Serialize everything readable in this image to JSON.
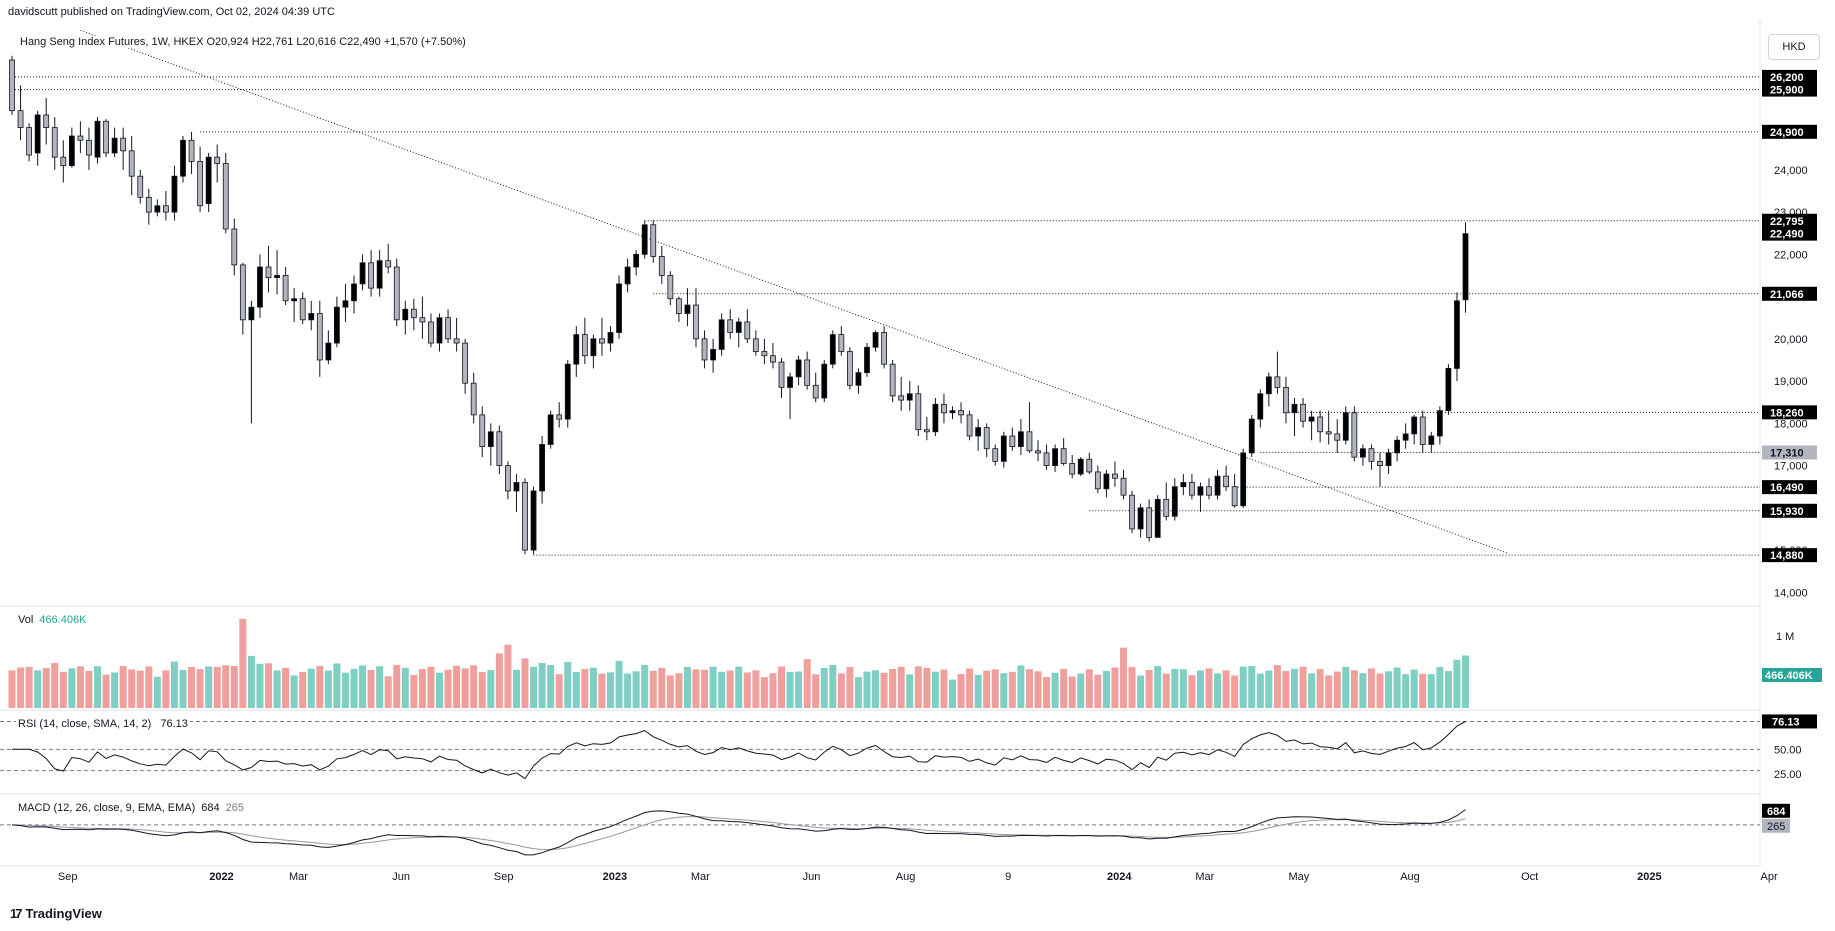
{
  "publisher_line": "davidscutt published on TradingView.com, Oct 02, 2024 04:39 UTC",
  "legend": "Hang Seng Index Futures, 1W, HKEX  O20,924  H22,761  L20,616  C22,490  +1,570 (+7.50%)",
  "currency_button": "HKD",
  "brand": "TradingView",
  "brand_logo": "17",
  "colors": {
    "up_body": "#000000",
    "down_body": "#b2b5be",
    "vol_up": "#7fcfc4",
    "vol_down": "#f0a09c",
    "vol_label": "#26a69a",
    "tag_bg": "#000000",
    "tag_grey_bg": "#b2b5be",
    "vol_tag_bg": "#26a69a"
  },
  "price_axis": {
    "labels": [
      "26,200",
      "25,900",
      "24,900",
      "24,000",
      "23,000",
      "22,795",
      "22,490",
      "22,000",
      "21,066",
      "20,000",
      "19,000",
      "18,260",
      "18,000",
      "17,310",
      "17,000",
      "16,490",
      "15,930",
      "15,000",
      "14,880",
      "14,000"
    ],
    "tags": [
      {
        "text": "26,200",
        "price": 26200,
        "style": "black"
      },
      {
        "text": "25,900",
        "price": 25900,
        "style": "black"
      },
      {
        "text": "24,900",
        "price": 24900,
        "style": "black"
      },
      {
        "text": "22,795",
        "price": 22795,
        "style": "black"
      },
      {
        "text": "22,490",
        "price": 22490,
        "style": "black"
      },
      {
        "text": "21,066",
        "price": 21066,
        "style": "black"
      },
      {
        "text": "18,260",
        "price": 18260,
        "style": "black"
      },
      {
        "text": "17,310",
        "price": 17310,
        "style": "grey"
      },
      {
        "text": "16,490",
        "price": 16490,
        "style": "black"
      },
      {
        "text": "15,930",
        "price": 15930,
        "style": "black"
      },
      {
        "text": "14,880",
        "price": 14880,
        "style": "black"
      }
    ],
    "ticks": [
      {
        "text": "24,000",
        "price": 24000
      },
      {
        "text": "23,000",
        "price": 23000
      },
      {
        "text": "22,000",
        "price": 22000
      },
      {
        "text": "20,000",
        "price": 20000
      },
      {
        "text": "19,000",
        "price": 19000
      },
      {
        "text": "18,000",
        "price": 18000
      },
      {
        "text": "17,000",
        "price": 17000
      },
      {
        "text": "15,000",
        "price": 15000
      },
      {
        "text": "14,000",
        "price": 14000
      }
    ]
  },
  "levels": [
    {
      "price": 26200,
      "from_bar": 0
    },
    {
      "price": 25900,
      "from_bar": 0
    },
    {
      "price": 24900,
      "from_bar": 22
    },
    {
      "price": 22795,
      "from_bar": 74
    },
    {
      "price": 21066,
      "from_bar": 75
    },
    {
      "price": 18260,
      "from_bar": 149
    },
    {
      "price": 17310,
      "from_bar": 146
    },
    {
      "price": 16490,
      "from_bar": 143
    },
    {
      "price": 15930,
      "from_bar": 126
    },
    {
      "price": 14880,
      "from_bar": 61
    }
  ],
  "trendline": {
    "from": {
      "bar": 8,
      "price": 27300
    },
    "to": {
      "bar": 175,
      "price": 14920
    }
  },
  "time_axis": [
    "Sep",
    "2022",
    "Mar",
    "Jun",
    "Sep",
    "2023",
    "Mar",
    "Jun",
    "Aug",
    "9",
    "2024",
    "Mar",
    "May",
    "Aug",
    "Oct",
    "2025",
    "Apr"
  ],
  "volume": {
    "label": "Vol",
    "value": "466.406K",
    "axis_label": "1 M"
  },
  "rsi": {
    "label": "RSI (14, close, SMA, 14, 2)",
    "value": "76.13",
    "axis_labels": [
      "76.13",
      "50.00",
      "25.00"
    ]
  },
  "macd": {
    "label": "MACD (12, 26, close, 9, EMA, EMA)",
    "value_macd": "684",
    "value_signal": "265",
    "axis_tags": [
      "684",
      "265"
    ]
  },
  "chart_data": {
    "type": "candlestick",
    "symbol": "Hang Seng Index Futures",
    "interval": "1W",
    "exchange": "HKEX",
    "currency": "HKD",
    "last_bar": {
      "open": 20924,
      "high": 22761,
      "low": 20616,
      "close": 22490,
      "change": 1570,
      "change_pct": 7.5
    },
    "y_range": [
      13700,
      26600
    ],
    "horizontal_levels": [
      26200,
      25900,
      24900,
      22795,
      22490,
      21066,
      18260,
      17310,
      16490,
      15930,
      14880
    ],
    "candles_ohlc": [
      [
        26600,
        26700,
        25300,
        25400
      ],
      [
        25400,
        26000,
        24700,
        25000
      ],
      [
        25000,
        25100,
        24200,
        24350
      ],
      [
        24400,
        25400,
        24100,
        25300
      ],
      [
        25300,
        25700,
        24600,
        25000
      ],
      [
        25000,
        25250,
        24000,
        24300
      ],
      [
        24300,
        24700,
        23700,
        24100
      ],
      [
        24100,
        25000,
        24050,
        24800
      ],
      [
        24800,
        25150,
        24400,
        24700
      ],
      [
        24700,
        25000,
        24000,
        24350
      ],
      [
        24300,
        25250,
        24150,
        25150
      ],
      [
        25150,
        25200,
        24300,
        24400
      ],
      [
        24400,
        25000,
        24300,
        24750
      ],
      [
        24750,
        25000,
        24000,
        24450
      ],
      [
        24450,
        24800,
        23400,
        23850
      ],
      [
        23850,
        24000,
        23200,
        23350
      ],
      [
        23350,
        23550,
        22700,
        23000
      ],
      [
        23000,
        23300,
        22900,
        23150
      ],
      [
        23150,
        23500,
        22800,
        23000
      ],
      [
        23000,
        24100,
        22800,
        23850
      ],
      [
        23850,
        24800,
        23700,
        24700
      ],
      [
        24700,
        24900,
        23900,
        24200
      ],
      [
        24200,
        24550,
        23000,
        23150
      ],
      [
        23200,
        24400,
        23000,
        24300
      ],
      [
        24300,
        24600,
        23700,
        24150
      ],
      [
        24150,
        24400,
        22500,
        22600
      ],
      [
        22600,
        22850,
        21500,
        21750
      ],
      [
        21750,
        21800,
        20100,
        20450
      ],
      [
        20450,
        20900,
        18000,
        20750
      ],
      [
        20750,
        22000,
        20500,
        21700
      ],
      [
        21700,
        22200,
        21100,
        21450
      ],
      [
        21450,
        22100,
        21050,
        21500
      ],
      [
        21500,
        21700,
        20800,
        20900
      ],
      [
        20900,
        21200,
        20400,
        20950
      ],
      [
        20950,
        21100,
        20350,
        20450
      ],
      [
        20450,
        20900,
        20200,
        20600
      ],
      [
        20600,
        20900,
        19100,
        19500
      ],
      [
        19500,
        20200,
        19400,
        19900
      ],
      [
        19900,
        21000,
        19800,
        20750
      ],
      [
        20750,
        21300,
        20400,
        20900
      ],
      [
        20900,
        21500,
        20600,
        21300
      ],
      [
        21300,
        22000,
        21150,
        21800
      ],
      [
        21800,
        22100,
        21000,
        21200
      ],
      [
        21200,
        22100,
        21000,
        21850
      ],
      [
        21850,
        22250,
        21550,
        21700
      ],
      [
        21700,
        21900,
        20300,
        20450
      ],
      [
        20450,
        20900,
        20100,
        20700
      ],
      [
        20700,
        20950,
        20200,
        20500
      ],
      [
        20500,
        21000,
        20000,
        20400
      ],
      [
        20400,
        20600,
        19800,
        19900
      ],
      [
        19900,
        20600,
        19700,
        20500
      ],
      [
        20500,
        20700,
        19900,
        20000
      ],
      [
        20000,
        20500,
        19700,
        19900
      ],
      [
        19900,
        20000,
        18700,
        18950
      ],
      [
        18950,
        19200,
        18000,
        18200
      ],
      [
        18200,
        18400,
        17200,
        17450
      ],
      [
        17450,
        18000,
        17000,
        17800
      ],
      [
        17800,
        17950,
        16800,
        17000
      ],
      [
        17000,
        17100,
        16200,
        16400
      ],
      [
        16400,
        16800,
        15900,
        16600
      ],
      [
        16600,
        16700,
        14900,
        15000
      ],
      [
        15000,
        16500,
        14900,
        16400
      ],
      [
        16400,
        17700,
        16100,
        17500
      ],
      [
        17500,
        18300,
        17400,
        18200
      ],
      [
        18200,
        18500,
        17900,
        18100
      ],
      [
        18100,
        19500,
        17900,
        19400
      ],
      [
        19400,
        20300,
        19100,
        20100
      ],
      [
        20100,
        20500,
        19400,
        19600
      ],
      [
        19600,
        20100,
        19300,
        20000
      ],
      [
        20000,
        20500,
        19600,
        19900
      ],
      [
        19900,
        20300,
        19700,
        20150
      ],
      [
        20150,
        21500,
        20000,
        21300
      ],
      [
        21300,
        21900,
        21100,
        21700
      ],
      [
        21700,
        22100,
        21500,
        22000
      ],
      [
        22000,
        22800,
        21900,
        22700
      ],
      [
        22700,
        22800,
        21800,
        21950
      ],
      [
        21950,
        22200,
        21300,
        21500
      ],
      [
        21500,
        21600,
        20800,
        20950
      ],
      [
        20950,
        21000,
        20400,
        20600
      ],
      [
        20600,
        21200,
        20300,
        20800
      ],
      [
        20800,
        21200,
        19800,
        20000
      ],
      [
        20000,
        20200,
        19300,
        19500
      ],
      [
        19500,
        20000,
        19200,
        19750
      ],
      [
        19750,
        20600,
        19600,
        20450
      ],
      [
        20450,
        20700,
        20000,
        20150
      ],
      [
        20150,
        20500,
        19800,
        20400
      ],
      [
        20400,
        20700,
        19900,
        20000
      ],
      [
        20000,
        20200,
        19600,
        19700
      ],
      [
        19700,
        20000,
        19400,
        19600
      ],
      [
        19600,
        19900,
        19300,
        19450
      ],
      [
        19450,
        19550,
        18600,
        18850
      ],
      [
        18850,
        19200,
        18100,
        19100
      ],
      [
        19100,
        19600,
        18900,
        19500
      ],
      [
        19500,
        19700,
        18800,
        18900
      ],
      [
        18900,
        19200,
        18500,
        18600
      ],
      [
        18600,
        19500,
        18500,
        19400
      ],
      [
        19400,
        20200,
        19300,
        20100
      ],
      [
        20100,
        20300,
        19600,
        19700
      ],
      [
        19700,
        19800,
        18800,
        18900
      ],
      [
        18900,
        19300,
        18700,
        19200
      ],
      [
        19200,
        19900,
        19100,
        19800
      ],
      [
        19800,
        20200,
        19700,
        20150
      ],
      [
        20150,
        20300,
        19300,
        19400
      ],
      [
        19400,
        19500,
        18500,
        18650
      ],
      [
        18650,
        19100,
        18300,
        18550
      ],
      [
        18550,
        19000,
        18300,
        18700
      ],
      [
        18700,
        18900,
        17700,
        17850
      ],
      [
        17850,
        18150,
        17600,
        17800
      ],
      [
        17800,
        18600,
        17700,
        18450
      ],
      [
        18450,
        18700,
        18000,
        18250
      ],
      [
        18250,
        18400,
        18100,
        18300
      ],
      [
        18300,
        18500,
        18000,
        18200
      ],
      [
        18200,
        18300,
        17600,
        17700
      ],
      [
        17700,
        18100,
        17350,
        17900
      ],
      [
        17900,
        18000,
        17200,
        17400
      ],
      [
        17400,
        17500,
        17000,
        17100
      ],
      [
        17100,
        17800,
        16950,
        17700
      ],
      [
        17700,
        17900,
        17350,
        17450
      ],
      [
        17450,
        18100,
        17250,
        17800
      ],
      [
        17800,
        18500,
        17300,
        17350
      ],
      [
        17350,
        17600,
        17100,
        17300
      ],
      [
        17300,
        17500,
        16900,
        17000
      ],
      [
        17000,
        17500,
        16850,
        17400
      ],
      [
        17400,
        17650,
        17000,
        17050
      ],
      [
        17050,
        17250,
        16700,
        16800
      ],
      [
        16800,
        17200,
        16750,
        17150
      ],
      [
        17150,
        17300,
        16800,
        16850
      ],
      [
        16850,
        17000,
        16350,
        16450
      ],
      [
        16450,
        16900,
        16250,
        16800
      ],
      [
        16800,
        17100,
        16500,
        16700
      ],
      [
        16700,
        16900,
        16200,
        16300
      ],
      [
        16300,
        16400,
        15400,
        15500
      ],
      [
        15500,
        16100,
        15300,
        16000
      ],
      [
        16000,
        16200,
        15200,
        15300
      ],
      [
        15300,
        16300,
        15300,
        16200
      ],
      [
        16200,
        16600,
        15700,
        15800
      ],
      [
        15800,
        16700,
        15700,
        16500
      ],
      [
        16500,
        16800,
        16300,
        16600
      ],
      [
        16600,
        16800,
        16200,
        16300
      ],
      [
        16300,
        16600,
        15900,
        16500
      ],
      [
        16500,
        16700,
        16200,
        16300
      ],
      [
        16300,
        16900,
        16200,
        16750
      ],
      [
        16750,
        17000,
        16400,
        16500
      ],
      [
        16500,
        16800,
        16000,
        16050
      ],
      [
        16050,
        17400,
        16000,
        17300
      ],
      [
        17300,
        18200,
        17200,
        18100
      ],
      [
        18100,
        18800,
        17900,
        18700
      ],
      [
        18700,
        19200,
        18400,
        19100
      ],
      [
        19100,
        19700,
        18700,
        18850
      ],
      [
        18850,
        19100,
        18000,
        18250
      ],
      [
        18250,
        18600,
        17700,
        18450
      ],
      [
        18450,
        18600,
        17900,
        18050
      ],
      [
        18050,
        18300,
        17600,
        18150
      ],
      [
        18150,
        18300,
        17550,
        17800
      ],
      [
        17800,
        18300,
        17500,
        17750
      ],
      [
        17750,
        18100,
        17300,
        17600
      ],
      [
        17600,
        18400,
        17500,
        18250
      ],
      [
        18250,
        18400,
        17100,
        17200
      ],
      [
        17200,
        17500,
        17000,
        17400
      ],
      [
        17400,
        17500,
        16900,
        17100
      ],
      [
        17100,
        17300,
        16500,
        17000
      ],
      [
        17000,
        17400,
        16800,
        17300
      ],
      [
        17300,
        17700,
        17100,
        17600
      ],
      [
        17600,
        18000,
        17400,
        17750
      ],
      [
        17750,
        18200,
        17500,
        18150
      ],
      [
        18150,
        18300,
        17300,
        17500
      ],
      [
        17500,
        17800,
        17300,
        17700
      ],
      [
        17700,
        18400,
        17500,
        18300
      ],
      [
        18300,
        19400,
        18200,
        19300
      ],
      [
        19300,
        21100,
        19000,
        20900
      ],
      [
        20924,
        22761,
        20616,
        22490
      ]
    ],
    "rsi_latest": 76.13,
    "macd_latest": 684,
    "signal_latest": 265
  }
}
